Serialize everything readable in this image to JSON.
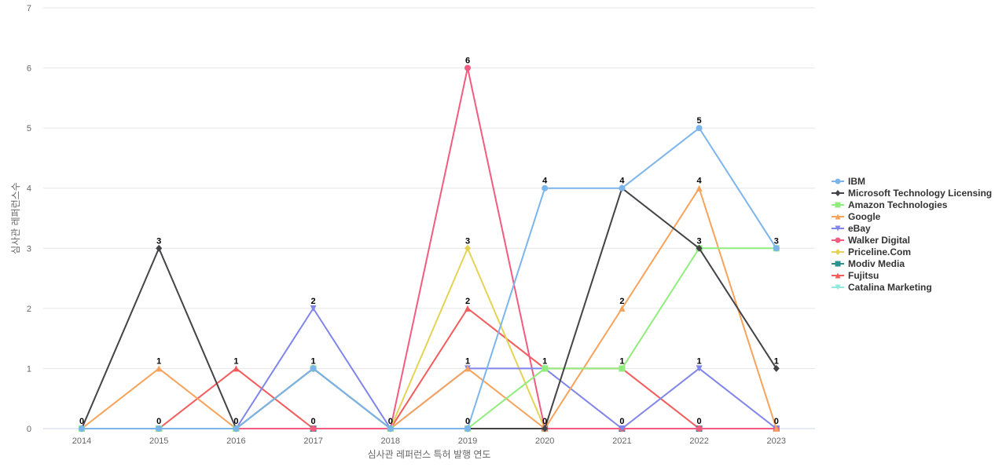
{
  "chart_data": {
    "type": "line",
    "xlabel": "심사관 레퍼런스 특허 발행 연도",
    "ylabel": "심사관 레퍼런스수",
    "x": [
      "2014",
      "2015",
      "2016",
      "2017",
      "2018",
      "2019",
      "2020",
      "2021",
      "2022",
      "2023"
    ],
    "ylim": [
      0,
      7
    ],
    "yticks": [
      0,
      1,
      2,
      3,
      4,
      5,
      6,
      7
    ],
    "grid": true,
    "legend_position": "right",
    "series": [
      {
        "name": "IBM",
        "color": "#7cb5ec",
        "marker": "circle",
        "values": [
          0,
          0,
          0,
          1,
          0,
          0,
          4,
          4,
          5,
          3
        ]
      },
      {
        "name": "Microsoft Technology Licensing",
        "color": "#434348",
        "marker": "diamond",
        "values": [
          0,
          3,
          0,
          1,
          0,
          0,
          0,
          4,
          3,
          1
        ]
      },
      {
        "name": "Amazon Technologies",
        "color": "#90ed7d",
        "marker": "square",
        "values": [
          0,
          0,
          0,
          1,
          0,
          0,
          1,
          1,
          3,
          3
        ]
      },
      {
        "name": "Google",
        "color": "#f7a35c",
        "marker": "triangle",
        "values": [
          0,
          1,
          0,
          1,
          0,
          1,
          0,
          2,
          4,
          0
        ]
      },
      {
        "name": "eBay",
        "color": "#8085e9",
        "marker": "triangle-down",
        "values": [
          0,
          0,
          0,
          2,
          0,
          1,
          1,
          0,
          1,
          0
        ]
      },
      {
        "name": "Walker Digital",
        "color": "#f15c80",
        "marker": "circle",
        "values": [
          0,
          0,
          0,
          0,
          0,
          6,
          0,
          0,
          0,
          0
        ]
      },
      {
        "name": "Priceline.Com",
        "color": "#e4d354",
        "marker": "diamond",
        "values": [
          0,
          0,
          0,
          0,
          0,
          3,
          0,
          0,
          0,
          0
        ]
      },
      {
        "name": "Modiv Media",
        "color": "#2b908f",
        "marker": "square",
        "values": [
          0,
          0,
          0,
          0,
          0,
          0,
          0,
          0,
          0,
          0
        ]
      },
      {
        "name": "Fujitsu",
        "color": "#f45b5b",
        "marker": "triangle",
        "values": [
          0,
          0,
          1,
          0,
          0,
          2,
          1,
          1,
          0,
          0
        ]
      },
      {
        "name": "Catalina Marketing",
        "color": "#91e8e1",
        "marker": "triangle-down",
        "values": [
          0,
          0,
          0,
          1,
          0,
          0,
          0,
          0,
          0,
          0
        ]
      }
    ],
    "data_labels": [
      {
        "x": "2014",
        "value": 0
      },
      {
        "x": "2015",
        "value": 3
      },
      {
        "x": "2015",
        "value": 1
      },
      {
        "x": "2015",
        "value": 0
      },
      {
        "x": "2016",
        "value": 1
      },
      {
        "x": "2016",
        "value": 0
      },
      {
        "x": "2017",
        "value": 2
      },
      {
        "x": "2017",
        "value": 1
      },
      {
        "x": "2017",
        "value": 0
      },
      {
        "x": "2018",
        "value": 0
      },
      {
        "x": "2019",
        "value": 6
      },
      {
        "x": "2019",
        "value": 3
      },
      {
        "x": "2019",
        "value": 2
      },
      {
        "x": "2019",
        "value": 1
      },
      {
        "x": "2019",
        "value": 0
      },
      {
        "x": "2020",
        "value": 4
      },
      {
        "x": "2020",
        "value": 1
      },
      {
        "x": "2020",
        "value": 0
      },
      {
        "x": "2021",
        "value": 4
      },
      {
        "x": "2021",
        "value": 2
      },
      {
        "x": "2021",
        "value": 1
      },
      {
        "x": "2021",
        "value": 0
      },
      {
        "x": "2022",
        "value": 5
      },
      {
        "x": "2022",
        "value": 4
      },
      {
        "x": "2022",
        "value": 3
      },
      {
        "x": "2022",
        "value": 1
      },
      {
        "x": "2022",
        "value": 0
      },
      {
        "x": "2023",
        "value": 3
      },
      {
        "x": "2023",
        "value": 1
      },
      {
        "x": "2023",
        "value": 0
      }
    ]
  }
}
